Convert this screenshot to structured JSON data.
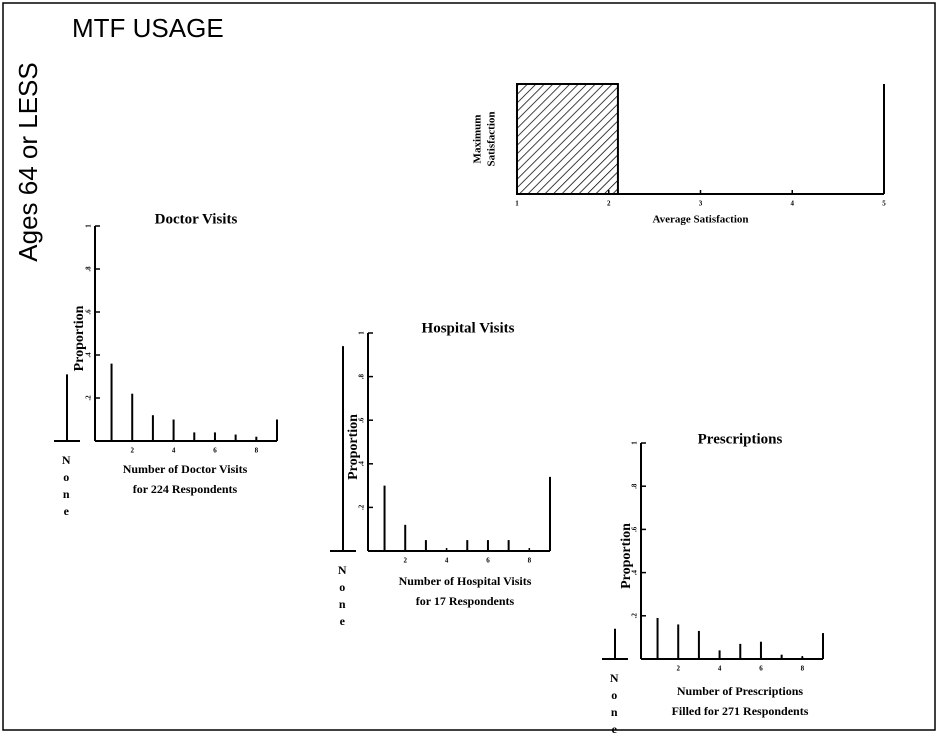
{
  "title": "MTF USAGE",
  "side_label": "Ages 64 or LESS",
  "chart_data": [
    {
      "type": "hbar",
      "value": 2.1,
      "xlim": [
        1,
        5
      ],
      "xticks": [
        1,
        2,
        3,
        4,
        5
      ],
      "y_label": [
        "Maximum",
        "Satisfaction"
      ],
      "x_label": [
        "Average Satisfaction"
      ]
    },
    {
      "type": "bar",
      "title": "Doctor Visits",
      "y_label": "Proportion",
      "x_label": [
        "Number of Doctor Visits",
        "for 224 Respondents"
      ],
      "none_label": "None",
      "none_value": 0.31,
      "x": [
        1,
        2,
        3,
        4,
        5,
        6,
        7,
        8,
        9
      ],
      "values": [
        0.36,
        0.22,
        0.12,
        0.1,
        0.04,
        0.04,
        0.03,
        0.02,
        0.1
      ],
      "xlim": [
        0.2,
        9
      ],
      "xticks": [
        2,
        4,
        6,
        8
      ],
      "ylim": [
        0,
        1
      ],
      "yticks": [
        {
          "value": 0.2,
          "label": ".2"
        },
        {
          "value": 0.4,
          "label": ".4"
        },
        {
          "value": 0.6,
          "label": ".6"
        },
        {
          "value": 0.8,
          "label": ".8"
        },
        1
      ]
    },
    {
      "type": "bar",
      "title": "Hospital Visits",
      "y_label": "Proportion",
      "x_label": [
        "Number of Hospital Visits",
        "for 17 Respondents"
      ],
      "none_label": "None",
      "none_value": 0.94,
      "x": [
        1,
        2,
        3,
        4,
        5,
        6,
        7,
        8,
        9
      ],
      "values": [
        0.3,
        0.12,
        0.05,
        0,
        0.05,
        0.05,
        0.05,
        0,
        0.34
      ],
      "xlim": [
        0.2,
        9
      ],
      "xticks": [
        2,
        4,
        6,
        8
      ],
      "ylim": [
        0,
        1
      ],
      "yticks": [
        {
          "value": 0.2,
          "label": ".2"
        },
        {
          "value": 0.4,
          "label": ".4"
        },
        {
          "value": 0.6,
          "label": ".6"
        },
        {
          "value": 0.8,
          "label": ".8"
        },
        1
      ]
    },
    {
      "type": "bar",
      "title": "Prescriptions",
      "y_label": "Proportion",
      "x_label": [
        "Number of Prescriptions",
        "Filled for 271 Respondents"
      ],
      "none_label": "None",
      "none_value": 0.14,
      "x": [
        1,
        2,
        3,
        4,
        5,
        6,
        7,
        8,
        9
      ],
      "values": [
        0.19,
        0.16,
        0.13,
        0.04,
        0.07,
        0.08,
        0.02,
        0.01,
        0.12
      ],
      "xlim": [
        0.2,
        9
      ],
      "xticks": [
        2,
        4,
        6,
        8
      ],
      "ylim": [
        0,
        1
      ],
      "yticks": [
        {
          "value": 0.2,
          "label": ".2"
        },
        {
          "value": 0.4,
          "label": ".4"
        },
        {
          "value": 0.6,
          "label": ".6"
        },
        {
          "value": 0.8,
          "label": ".8"
        },
        1
      ]
    }
  ]
}
